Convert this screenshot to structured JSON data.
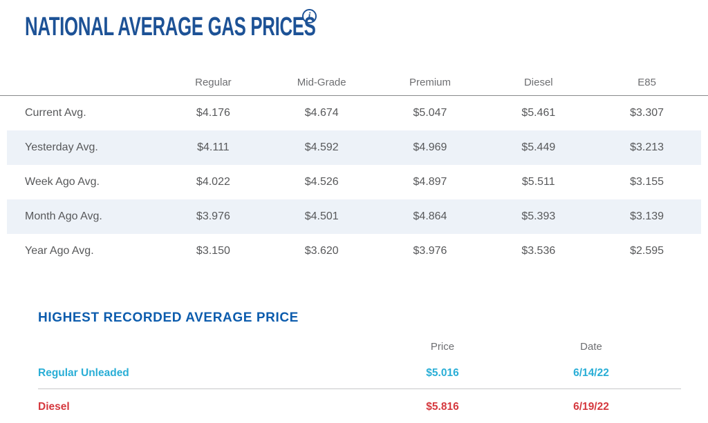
{
  "header": {
    "title": "NATIONAL AVERAGE GAS PRICES",
    "info_icon": "i"
  },
  "gas_table": {
    "columns": [
      "Regular",
      "Mid-Grade",
      "Premium",
      "Diesel",
      "E85"
    ],
    "rows": [
      {
        "label": "Current Avg.",
        "values": [
          "$4.176",
          "$4.674",
          "$5.047",
          "$5.461",
          "$3.307"
        ]
      },
      {
        "label": "Yesterday Avg.",
        "values": [
          "$4.111",
          "$4.592",
          "$4.969",
          "$5.449",
          "$3.213"
        ]
      },
      {
        "label": "Week Ago Avg.",
        "values": [
          "$4.022",
          "$4.526",
          "$4.897",
          "$5.511",
          "$3.155"
        ]
      },
      {
        "label": "Month Ago Avg.",
        "values": [
          "$3.976",
          "$4.501",
          "$4.864",
          "$5.393",
          "$3.139"
        ]
      },
      {
        "label": "Year Ago Avg.",
        "values": [
          "$3.150",
          "$3.620",
          "$3.976",
          "$3.536",
          "$2.595"
        ]
      }
    ]
  },
  "highest_recorded": {
    "title": "HIGHEST RECORDED AVERAGE PRICE",
    "columns": {
      "price": "Price",
      "date": "Date"
    },
    "rows": [
      {
        "label": "Regular Unleaded",
        "price": "$5.016",
        "date": "6/14/22"
      },
      {
        "label": "Diesel",
        "price": "$5.816",
        "date": "6/19/22"
      }
    ]
  },
  "colors": {
    "title_blue": "#1d5296",
    "section_heading_blue": "#0c5cad",
    "row_stripe": "#edf2f8",
    "table_text": "#57585a",
    "column_header_gray": "#6d6e71",
    "header_divider": "#88898b",
    "light_divider": "#c6c7c9",
    "regular_unleaded_cyan": "#29aed6",
    "diesel_red": "#d5383e"
  }
}
